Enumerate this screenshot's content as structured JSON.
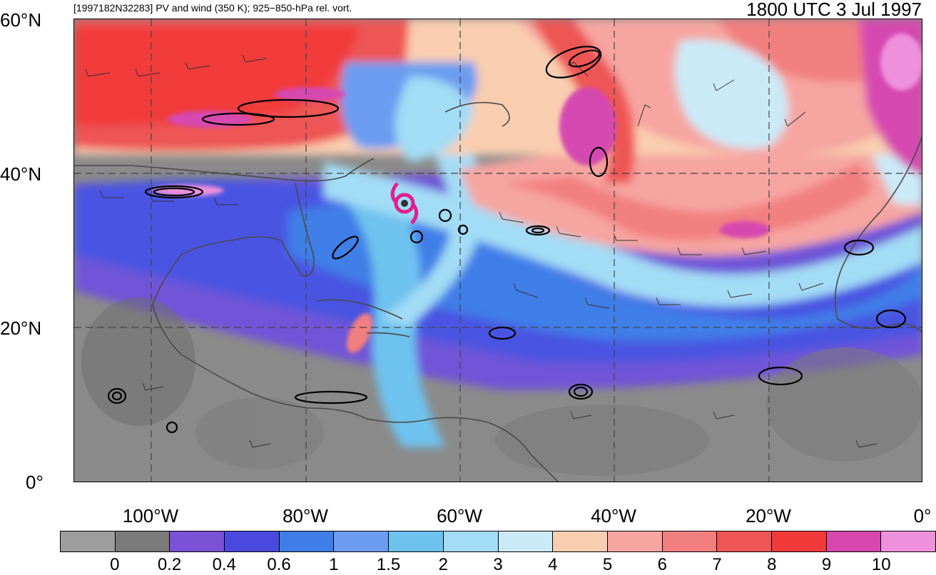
{
  "header": {
    "left_title": "[1997182N32283] PV and wind (350 K); 925−850-hPa rel. vort.",
    "right_title": "1800 UTC 3 Jul 1997"
  },
  "axes": {
    "lat_labels": [
      "60°N",
      "40°N",
      "20°N",
      "0°"
    ],
    "lon_labels": [
      "100°W",
      "80°W",
      "60°W",
      "40°W",
      "20°W",
      "0°"
    ]
  },
  "colorbar": {
    "colors": [
      "#9e9e9e",
      "#7a7a7a",
      "#7a52d6",
      "#4a4ae0",
      "#3f7ee8",
      "#6b9cf0",
      "#6ec2ee",
      "#a3dcf5",
      "#cbeaf8",
      "#f9cdb0",
      "#f6a5a0",
      "#f27f80",
      "#ee5555",
      "#f23a3a",
      "#d648b0",
      "#ee90dc"
    ],
    "labels": [
      "0",
      "0.2",
      "0.4",
      "0.6",
      "1",
      "1.5",
      "2",
      "3",
      "4",
      "5",
      "6",
      "7",
      "8",
      "9",
      "10"
    ]
  },
  "storm_marker": {
    "color": "#e0208c",
    "label": "hurricane-symbol"
  }
}
